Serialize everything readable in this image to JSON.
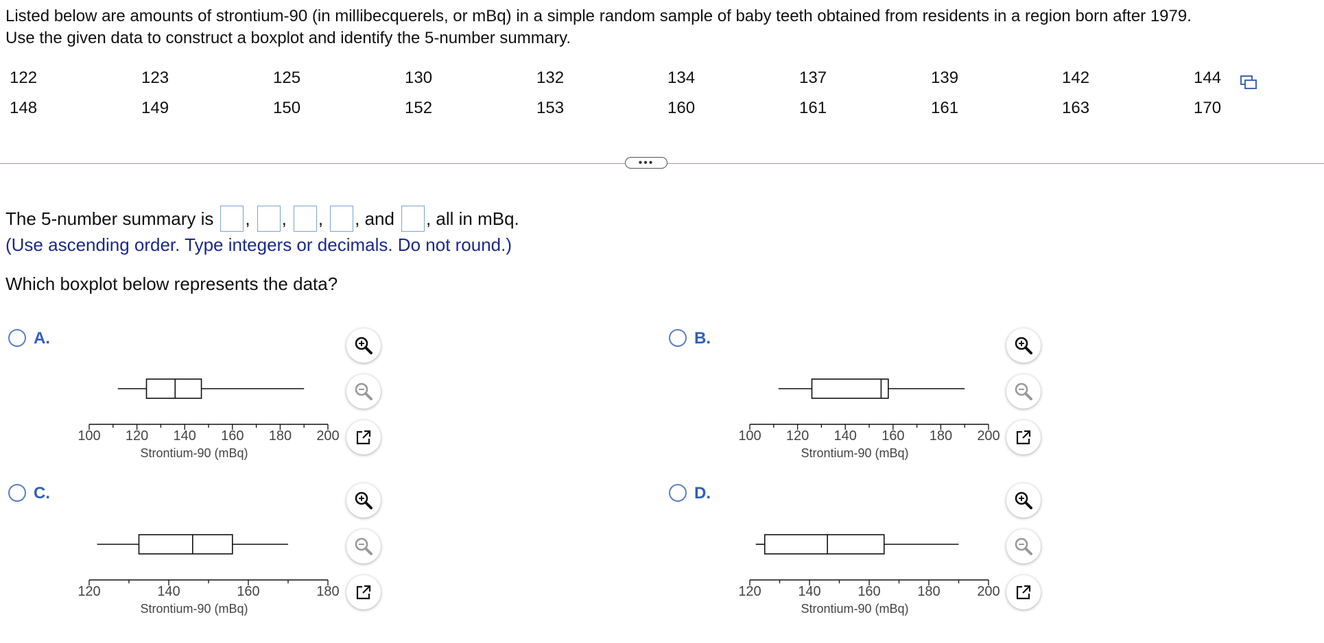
{
  "intro": {
    "line1": "Listed below are amounts of strontium-90 (in millibecquerels, or mBq) in a simple random sample of baby teeth obtained from residents in a region born after 1979.",
    "line2": "Use the given data to construct a boxplot and identify the 5-number summary."
  },
  "data_rows": [
    [
      "122",
      "123",
      "125",
      "130",
      "132",
      "134",
      "137",
      "139",
      "142",
      "144"
    ],
    [
      "148",
      "149",
      "150",
      "152",
      "153",
      "160",
      "161",
      "161",
      "163",
      "170"
    ]
  ],
  "summary": {
    "prefix": "The 5-number summary is",
    "sep": ",",
    "and": ", and",
    "suffix": ", all in mBq.",
    "hint": "(Use ascending order. Type integers or decimals. Do not round.)"
  },
  "question": "Which boxplot below represents the data?",
  "options": [
    {
      "letter": "A.",
      "xlabel": "Strontium-90 (mBq)",
      "axis": {
        "min": 100,
        "max": 200,
        "labels": [
          "100",
          "120",
          "140",
          "160",
          "180",
          "200"
        ],
        "minor": 10
      },
      "box": {
        "whisker_min": 112,
        "q1": 124,
        "median": 136,
        "q3": 147,
        "whisker_max": 190
      }
    },
    {
      "letter": "B.",
      "xlabel": "Strontium-90 (mBq)",
      "axis": {
        "min": 100,
        "max": 200,
        "labels": [
          "100",
          "120",
          "140",
          "160",
          "180",
          "200"
        ],
        "minor": 10
      },
      "box": {
        "whisker_min": 112,
        "q1": 126,
        "median": 155,
        "q3": 158,
        "whisker_max": 190
      }
    },
    {
      "letter": "C.",
      "xlabel": "Strontium-90 (mBq)",
      "axis": {
        "min": 120,
        "max": 180,
        "labels": [
          "120",
          "140",
          "160",
          "180"
        ],
        "minor": 10
      },
      "box": {
        "whisker_min": 122,
        "q1": 132.5,
        "median": 146,
        "q3": 156,
        "whisker_max": 170
      }
    },
    {
      "letter": "D.",
      "xlabel": "Strontium-90 (mBq)",
      "axis": {
        "min": 120,
        "max": 200,
        "labels": [
          "120",
          "140",
          "160",
          "180",
          "200"
        ],
        "minor": 10
      },
      "box": {
        "whisker_min": 122,
        "q1": 125,
        "median": 146,
        "q3": 165,
        "whisker_max": 190
      }
    }
  ],
  "icons": {
    "copy": "copy-icon",
    "expand": "ellipsis-icon",
    "zoom_in": "zoom-in-icon",
    "zoom_out": "zoom-out-icon",
    "popout": "open-external-icon"
  },
  "colors": {
    "hint": "#1a2a8a",
    "accent": "#2f5fb8",
    "box_border": "#7aa3cf"
  }
}
